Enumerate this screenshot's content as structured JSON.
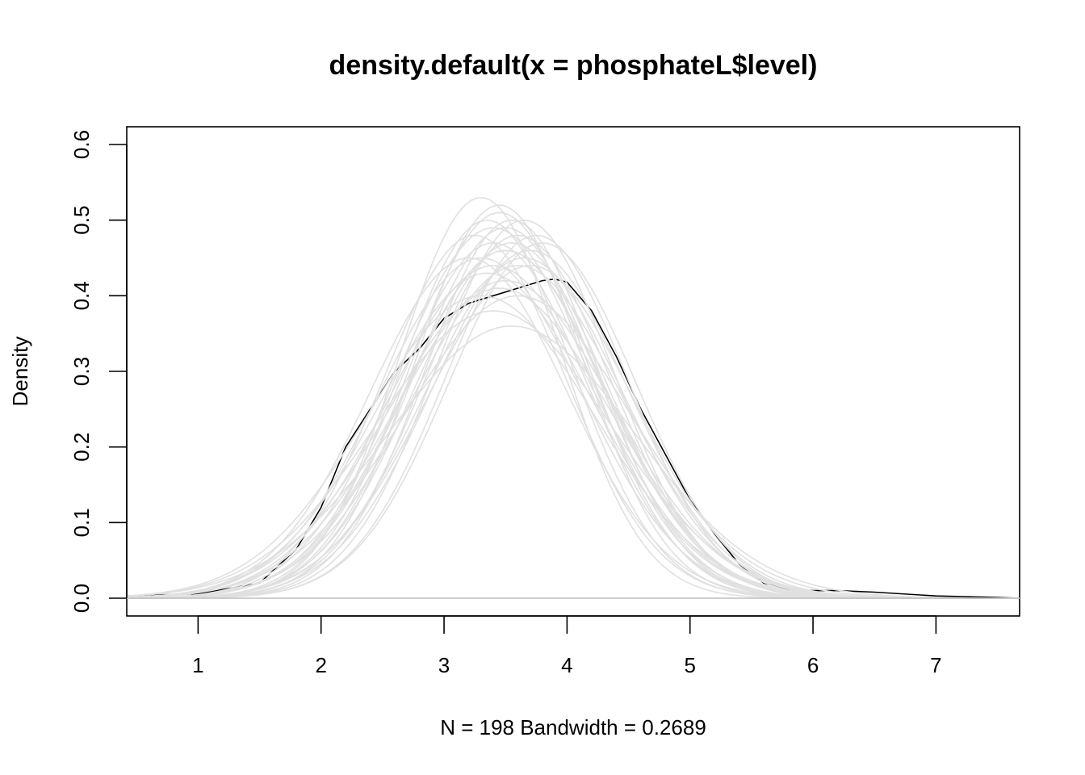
{
  "chart_data": {
    "type": "line",
    "title": "density.default(x = phosphateL$level)",
    "xlabel": "N = 198   Bandwidth = 0.2689",
    "ylabel": "Density",
    "xlim": [
      0.42,
      7.68
    ],
    "ylim": [
      0.0,
      0.6
    ],
    "x_ticks": [
      1,
      2,
      3,
      4,
      5,
      6,
      7
    ],
    "x_tick_labels": [
      "1",
      "2",
      "3",
      "4",
      "5",
      "6",
      "7"
    ],
    "y_ticks": [
      0.0,
      0.1,
      0.2,
      0.3,
      0.4,
      0.5,
      0.6
    ],
    "y_tick_labels": [
      "0.0",
      "0.1",
      "0.2",
      "0.3",
      "0.4",
      "0.5",
      "0.6"
    ],
    "grid": false,
    "legend": "none",
    "colors": {
      "main": "#000000",
      "envelope": "#e0e0e0",
      "zero_line": "#bebebe"
    },
    "main_series": {
      "x": [
        0.42,
        1.0,
        1.5,
        1.8,
        2.0,
        2.2,
        2.4,
        2.6,
        2.8,
        3.0,
        3.2,
        3.4,
        3.6,
        3.8,
        3.9,
        4.0,
        4.2,
        4.4,
        4.6,
        4.8,
        5.0,
        5.2,
        5.4,
        5.6,
        5.8,
        6.0,
        6.2,
        6.5,
        7.0,
        7.5,
        7.68
      ],
      "y": [
        0.003,
        0.006,
        0.02,
        0.065,
        0.12,
        0.2,
        0.25,
        0.3,
        0.33,
        0.37,
        0.39,
        0.4,
        0.41,
        0.42,
        0.422,
        0.418,
        0.38,
        0.32,
        0.25,
        0.19,
        0.13,
        0.085,
        0.045,
        0.02,
        0.012,
        0.01,
        0.01,
        0.008,
        0.003,
        0.001,
        0.0
      ]
    },
    "envelope_curves": [
      {
        "mu": 3.4,
        "sigma": 0.78,
        "peak": 0.49
      },
      {
        "mu": 3.6,
        "sigma": 0.75,
        "peak": 0.48
      },
      {
        "mu": 3.3,
        "sigma": 0.66,
        "peak": 0.53
      },
      {
        "mu": 3.5,
        "sigma": 0.8,
        "peak": 0.46
      },
      {
        "mu": 3.45,
        "sigma": 0.72,
        "peak": 0.51
      },
      {
        "mu": 3.55,
        "sigma": 0.77,
        "peak": 0.47
      },
      {
        "mu": 3.7,
        "sigma": 0.79,
        "peak": 0.46
      },
      {
        "mu": 3.25,
        "sigma": 0.74,
        "peak": 0.48
      },
      {
        "mu": 3.5,
        "sigma": 0.88,
        "peak": 0.42
      },
      {
        "mu": 3.4,
        "sigma": 0.95,
        "peak": 0.38
      },
      {
        "mu": 3.6,
        "sigma": 0.85,
        "peak": 0.44
      },
      {
        "mu": 3.3,
        "sigma": 0.82,
        "peak": 0.45
      },
      {
        "mu": 3.8,
        "sigma": 0.76,
        "peak": 0.47
      },
      {
        "mu": 3.35,
        "sigma": 0.7,
        "peak": 0.5
      },
      {
        "mu": 3.65,
        "sigma": 0.72,
        "peak": 0.5
      },
      {
        "mu": 3.45,
        "sigma": 0.9,
        "peak": 0.41
      },
      {
        "mu": 3.55,
        "sigma": 1.0,
        "peak": 0.36
      },
      {
        "mu": 3.4,
        "sigma": 0.76,
        "peak": 0.47
      },
      {
        "mu": 3.7,
        "sigma": 0.83,
        "peak": 0.44
      },
      {
        "mu": 3.2,
        "sigma": 0.8,
        "peak": 0.45
      },
      {
        "mu": 3.5,
        "sigma": 0.74,
        "peak": 0.49
      },
      {
        "mu": 3.6,
        "sigma": 0.92,
        "peak": 0.4
      },
      {
        "mu": 3.35,
        "sigma": 0.86,
        "peak": 0.43
      },
      {
        "mu": 3.75,
        "sigma": 0.74,
        "peak": 0.48
      },
      {
        "mu": 3.45,
        "sigma": 0.68,
        "peak": 0.52
      },
      {
        "mu": 3.5,
        "sigma": 0.81,
        "peak": 0.46
      },
      {
        "mu": 3.3,
        "sigma": 0.92,
        "peak": 0.4
      },
      {
        "mu": 3.65,
        "sigma": 0.8,
        "peak": 0.45
      },
      {
        "mu": 3.55,
        "sigma": 0.7,
        "peak": 0.5
      },
      {
        "mu": 3.4,
        "sigma": 0.84,
        "peak": 0.44
      }
    ]
  }
}
